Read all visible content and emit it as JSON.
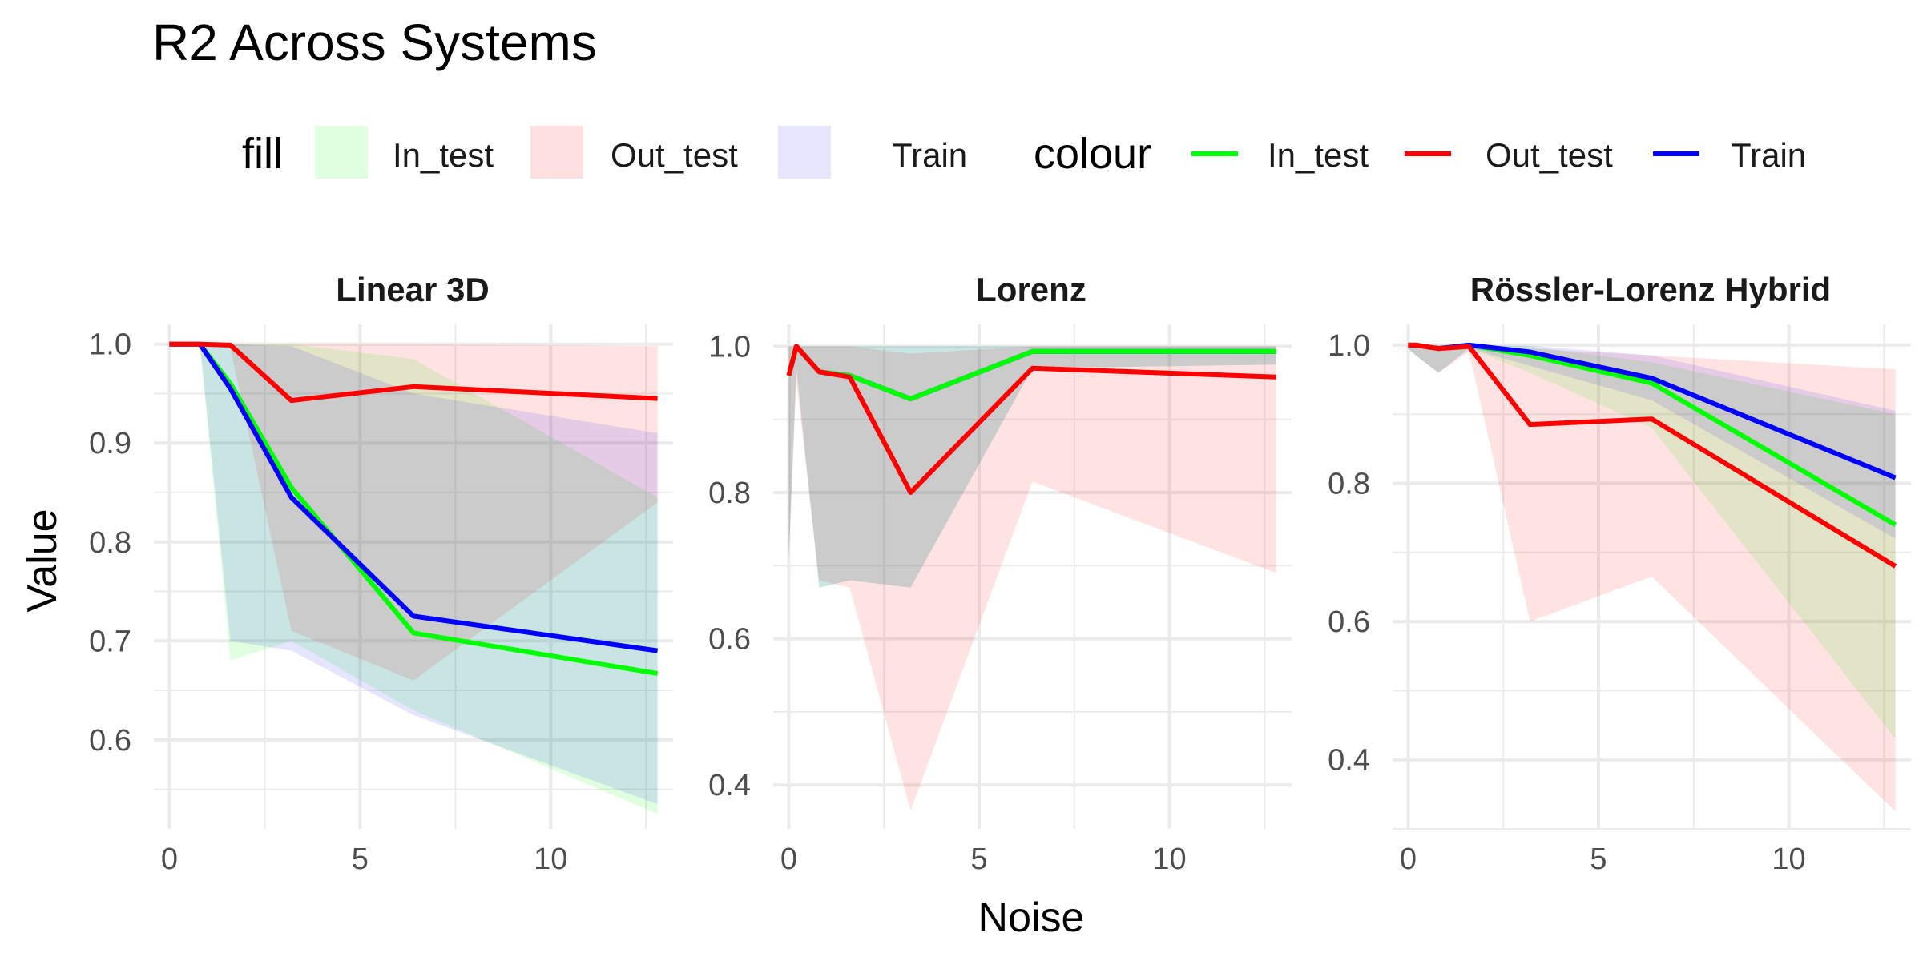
{
  "title": "R2 Across Systems",
  "colors": {
    "In_test": "#00FF00",
    "Out_test": "#FF0000",
    "Train": "#0000FF"
  },
  "legend": {
    "fill_title": "fill",
    "colour_title": "colour",
    "fill_items": [
      "In_test",
      "Out_test",
      "Train"
    ],
    "colour_items": [
      "In_test",
      "Out_test",
      "Train"
    ],
    "position": "top"
  },
  "chart_data": {
    "type": "line",
    "xlabel": "Noise",
    "ylabel": "Value",
    "x": [
      0,
      0.2,
      0.8,
      1.6,
      3.2,
      6.4,
      12.8
    ],
    "panels": [
      {
        "title": "Linear 3D",
        "xlim": [
          0,
          12.8
        ],
        "ylim": [
          0.51,
          1.02
        ],
        "xticks": [
          0,
          5,
          10
        ],
        "yticks": [
          0.6,
          0.7,
          0.8,
          0.9,
          1.0
        ],
        "series": [
          {
            "name": "In_test",
            "values": [
              1.0,
              1.0,
              1.0,
              0.96,
              0.855,
              0.708,
              0.667
            ],
            "lower": [
              1.0,
              1.0,
              1.0,
              0.68,
              0.7,
              0.63,
              0.525
            ],
            "upper": [
              1.0,
              1.0,
              1.0,
              1.0,
              1.0,
              0.985,
              0.845
            ]
          },
          {
            "name": "Out_test",
            "values": [
              1.0,
              1.0,
              1.0,
              0.999,
              0.943,
              0.957,
              0.945
            ],
            "lower": [
              1.0,
              1.0,
              1.0,
              0.995,
              0.71,
              0.66,
              0.84
            ],
            "upper": [
              1.0,
              1.0,
              1.0,
              1.0,
              1.0,
              1.0,
              0.998
            ]
          },
          {
            "name": "Train",
            "values": [
              1.0,
              1.0,
              1.0,
              0.955,
              0.845,
              0.725,
              0.69
            ],
            "lower": [
              1.0,
              1.0,
              1.0,
              0.7,
              0.69,
              0.625,
              0.535
            ],
            "upper": [
              1.0,
              1.0,
              1.0,
              1.0,
              0.998,
              0.95,
              0.91
            ]
          }
        ]
      },
      {
        "title": "Lorenz",
        "xlim": [
          0,
          12.8
        ],
        "ylim": [
          0.34,
          1.03
        ],
        "xticks": [
          0,
          5,
          10
        ],
        "yticks": [
          0.4,
          0.6,
          0.8,
          1.0
        ],
        "series": [
          {
            "name": "In_test",
            "values": [
              0.96,
              1.0,
              0.965,
              0.96,
              0.928,
              0.993,
              0.993
            ],
            "lower": [
              0.71,
              0.97,
              0.67,
              0.68,
              0.67,
              0.97,
              0.975
            ],
            "upper": [
              1.0,
              1.0,
              1.0,
              1.0,
              1.0,
              1.0,
              1.0
            ]
          },
          {
            "name": "Out_test",
            "values": [
              0.96,
              1.0,
              0.965,
              0.958,
              0.8,
              0.97,
              0.958
            ],
            "lower": [
              0.71,
              0.95,
              0.68,
              0.67,
              0.365,
              0.815,
              0.69
            ],
            "upper": [
              1.0,
              1.0,
              1.0,
              1.0,
              0.99,
              1.0,
              1.0
            ]
          },
          {
            "name": "Train",
            "values": [
              0.96,
              1.0,
              0.965,
              0.96,
              0.928,
              0.993,
              0.993
            ],
            "lower": [
              0.71,
              0.97,
              0.67,
              0.68,
              0.67,
              0.97,
              0.975
            ],
            "upper": [
              1.0,
              1.0,
              1.0,
              1.0,
              1.0,
              1.0,
              1.0
            ]
          }
        ]
      },
      {
        "title": "Rössler-Lorenz Hybrid",
        "xlim": [
          0,
          12.8
        ],
        "ylim": [
          0.3,
          1.03
        ],
        "xticks": [
          0,
          5,
          10
        ],
        "yticks": [
          0.4,
          0.6,
          0.8,
          1.0
        ],
        "series": [
          {
            "name": "In_test",
            "values": [
              1.0,
              1.0,
              0.995,
              1.0,
              0.985,
              0.945,
              0.74
            ],
            "lower": [
              0.995,
              0.985,
              0.96,
              0.995,
              0.96,
              0.88,
              0.43
            ],
            "upper": [
              1.0,
              1.0,
              1.0,
              1.0,
              0.998,
              0.975,
              0.9
            ]
          },
          {
            "name": "Out_test",
            "values": [
              1.0,
              1.0,
              0.995,
              0.998,
              0.885,
              0.893,
              0.68
            ],
            "lower": [
              0.995,
              0.985,
              0.96,
              0.99,
              0.6,
              0.665,
              0.325
            ],
            "upper": [
              1.0,
              1.0,
              1.0,
              1.0,
              0.995,
              0.985,
              0.965
            ]
          },
          {
            "name": "Train",
            "values": [
              1.0,
              1.0,
              0.995,
              1.0,
              0.99,
              0.952,
              0.808
            ],
            "lower": [
              0.995,
              0.985,
              0.96,
              0.995,
              0.97,
              0.92,
              0.72
            ],
            "upper": [
              1.0,
              1.0,
              1.0,
              1.0,
              0.999,
              0.985,
              0.905
            ]
          }
        ]
      }
    ]
  }
}
